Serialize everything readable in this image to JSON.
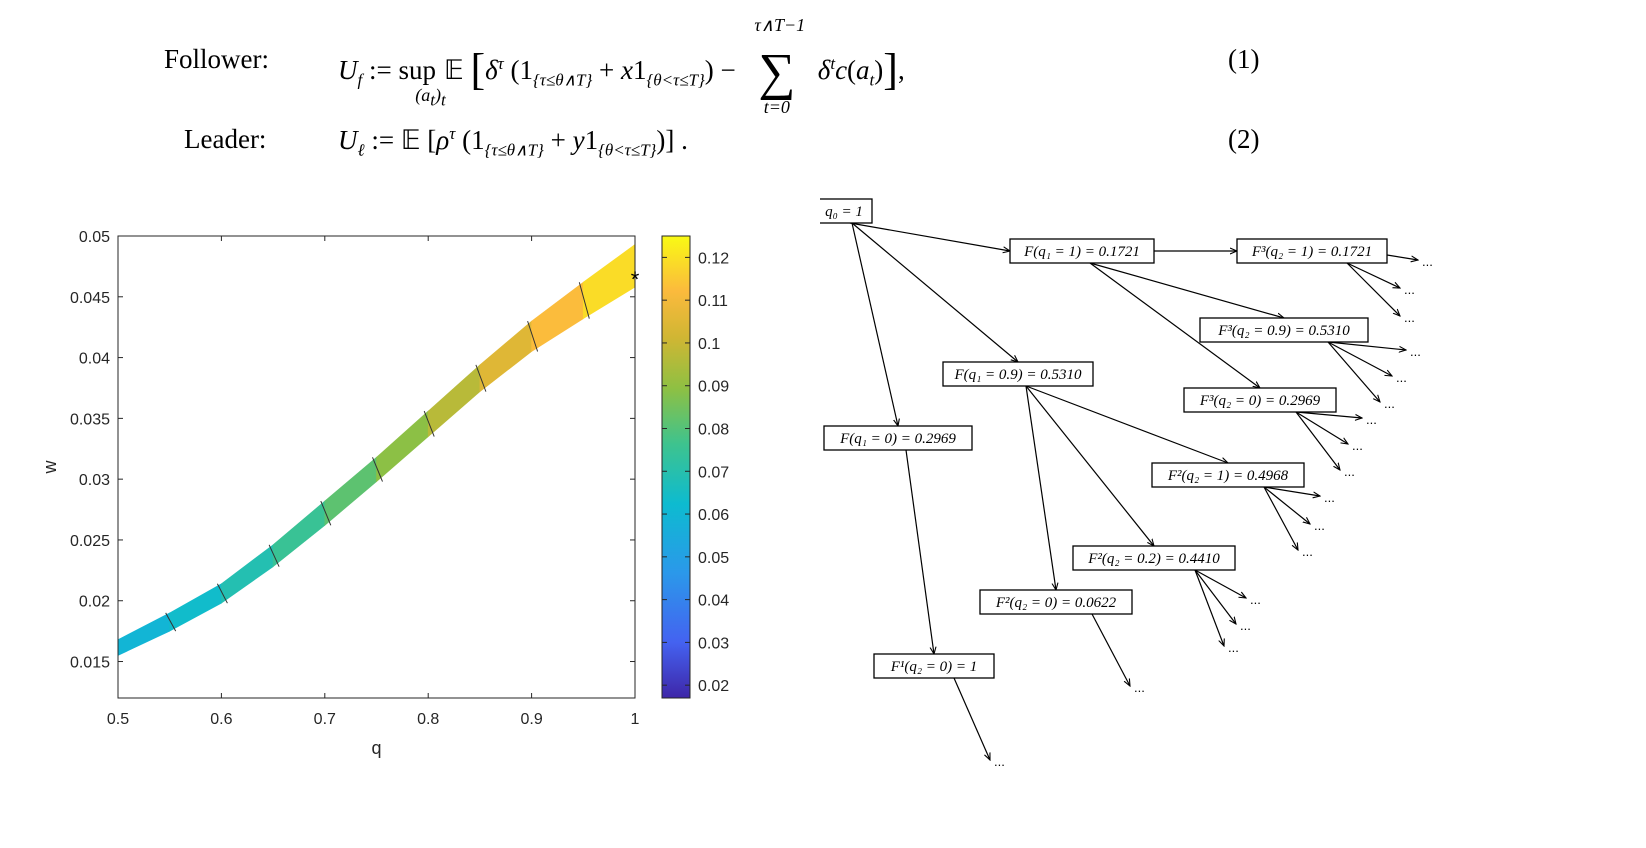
{
  "equations": [
    {
      "label": "Follower:",
      "number": "(1)"
    },
    {
      "label": "Leader:",
      "number": "(2)"
    }
  ],
  "chart_data": {
    "type": "heatmap",
    "xlabel": "q",
    "ylabel": "w",
    "xlim": [
      0.5,
      1.0
    ],
    "ylim": [
      0.012,
      0.05
    ],
    "xticks": [
      "0.5",
      "0.6",
      "0.7",
      "0.8",
      "0.9",
      "1"
    ],
    "yticks": [
      "0.015",
      "0.02",
      "0.025",
      "0.03",
      "0.035",
      "0.04",
      "0.045",
      "0.05"
    ],
    "colorbar": {
      "range": [
        0.017,
        0.125
      ],
      "ticks": [
        "0.02",
        "0.03",
        "0.04",
        "0.05",
        "0.06",
        "0.07",
        "0.08",
        "0.09",
        "0.1",
        "0.11",
        "0.12"
      ],
      "colormap": "parula"
    },
    "band": {
      "q": [
        0.5,
        0.55,
        0.6,
        0.65,
        0.7,
        0.75,
        0.8,
        0.85,
        0.9,
        0.95,
        1.0
      ],
      "w_lower": [
        0.0155,
        0.0175,
        0.0198,
        0.0228,
        0.0262,
        0.0298,
        0.0335,
        0.0372,
        0.0405,
        0.0432,
        0.0458
      ],
      "w_upper": [
        0.0168,
        0.019,
        0.0214,
        0.0246,
        0.0282,
        0.0318,
        0.0356,
        0.0394,
        0.043,
        0.0462,
        0.0493
      ],
      "value": [
        0.058,
        0.061,
        0.066,
        0.072,
        0.078,
        0.085,
        0.093,
        0.101,
        0.109,
        0.116,
        0.122
      ]
    },
    "star": {
      "q": 1.0,
      "w": 0.0467
    }
  },
  "tree": {
    "nodes": [
      {
        "id": "n0",
        "label": "q₀ = 1"
      },
      {
        "id": "n1",
        "label": "F(q₁ = 1) = 0.1721"
      },
      {
        "id": "n2",
        "label": "F³(q₂ = 1) = 0.1721"
      },
      {
        "id": "n3",
        "label": "F³(q₂ = 0.9) = 0.5310"
      },
      {
        "id": "n4",
        "label": "F(q₁ = 0.9) = 0.5310"
      },
      {
        "id": "n5",
        "label": "F³(q₂ = 0) = 0.2969"
      },
      {
        "id": "n6",
        "label": "F(q₁ = 0) = 0.2969"
      },
      {
        "id": "n7",
        "label": "F²(q₂ = 1) = 0.4968"
      },
      {
        "id": "n8",
        "label": "F²(q₂ = 0.2) = 0.4410"
      },
      {
        "id": "n9",
        "label": "F²(q₂ = 0) = 0.0622"
      },
      {
        "id": "n10",
        "label": "F¹(q₂ = 0) = 1"
      }
    ],
    "ellipsis": "..."
  }
}
